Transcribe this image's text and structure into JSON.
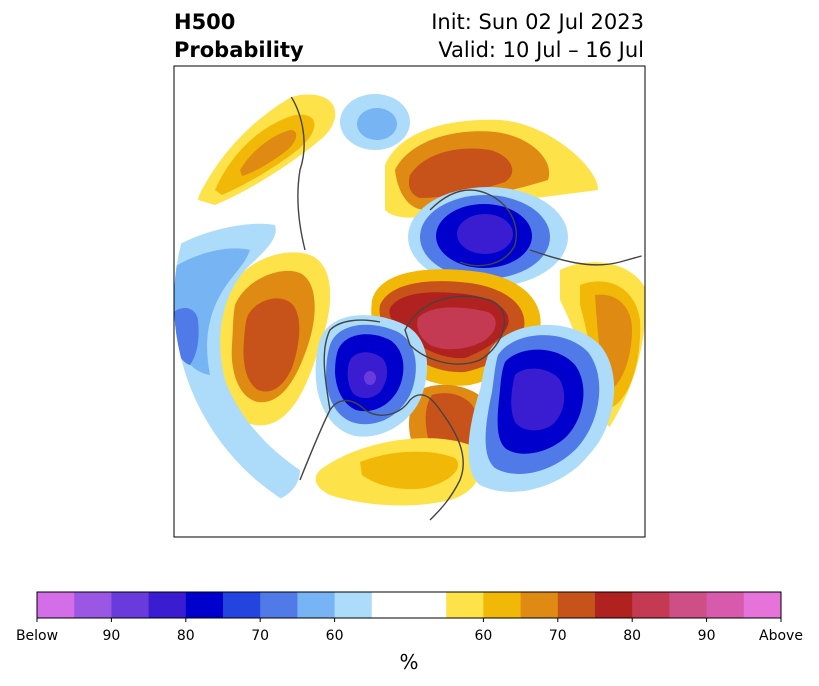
{
  "header": {
    "title_line1": "H500",
    "title_line2": "Probability",
    "init": "Init: Sun 02 Jul 2023",
    "valid": "Valid: 10 Jul – 16 Jul"
  },
  "map": {
    "projection": "north-polar-stereographic",
    "features": [
      {
        "kind": "above",
        "level": "60-70",
        "region": "North Pacific / Bering Sea"
      },
      {
        "kind": "below",
        "level": "60-70",
        "region": "Northeast Siberia"
      },
      {
        "kind": "above",
        "level": "70-80",
        "region": "Central Siberia / Kara Sea"
      },
      {
        "kind": "below",
        "level": "80-90",
        "region": "Barents Sea / Scandinavia"
      },
      {
        "kind": "above",
        "level": "80-90",
        "region": "Greenland / Canadian Arctic"
      },
      {
        "kind": "above",
        "level": "70-80",
        "region": "Northeast Pacific"
      },
      {
        "kind": "below",
        "level": "90-Below",
        "region": "Gulf of Alaska / Western Canada"
      },
      {
        "kind": "below",
        "level": "80-90",
        "region": "North Atlantic"
      },
      {
        "kind": "above",
        "level": "70-80",
        "region": "Eastern Canada / Hudson Bay"
      },
      {
        "kind": "above",
        "level": "60-70",
        "region": "Central United States"
      }
    ]
  },
  "colorbar": {
    "unit": "%",
    "colors": [
      "#d36ee8",
      "#9a57e4",
      "#6a3bdc",
      "#3a1dd0",
      "#0000cc",
      "#2444e0",
      "#4f7ae8",
      "#76b4f4",
      "#addcfa",
      "#ffffff",
      "#fee24a",
      "#f2b807",
      "#df8a12",
      "#c7531a",
      "#b0221f",
      "#c43a52",
      "#cd4f85",
      "#d85aac",
      "#e573d9"
    ],
    "labels": [
      {
        "text": "Below",
        "index": 0
      },
      {
        "text": "90",
        "index": 2
      },
      {
        "text": "80",
        "index": 4
      },
      {
        "text": "70",
        "index": 6
      },
      {
        "text": "60",
        "index": 8
      },
      {
        "text": "60",
        "index": 12
      },
      {
        "text": "70",
        "index": 14
      },
      {
        "text": "80",
        "index": 16
      },
      {
        "text": "90",
        "index": 18
      },
      {
        "text": "Above",
        "index": 20
      }
    ]
  }
}
